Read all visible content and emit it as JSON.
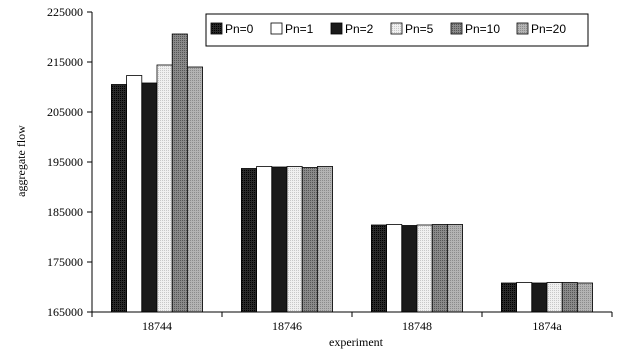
{
  "chart_data": {
    "type": "bar",
    "title": "",
    "xlabel": "experiment",
    "ylabel": "aggregate flow",
    "categories": [
      "18744",
      "18746",
      "18748",
      "1874a"
    ],
    "ylim": [
      165000,
      225000
    ],
    "yticks": [
      165000,
      175000,
      185000,
      195000,
      205000,
      215000,
      225000
    ],
    "ytick_labels": [
      "165000",
      "175000",
      "185000",
      "195000",
      "205000",
      "215000",
      "225000"
    ],
    "grid": false,
    "legend_position": "top-right",
    "series": [
      {
        "name": "Pn=0",
        "color": "#000000",
        "values": [
          210500,
          193700,
          182400,
          170800
        ]
      },
      {
        "name": "Pn=1",
        "color": "#ffffff",
        "values": [
          212300,
          194100,
          182500,
          170900
        ]
      },
      {
        "name": "Pn=2",
        "color": "#1a1a1a",
        "values": [
          210800,
          194000,
          182300,
          170800
        ]
      },
      {
        "name": "Pn=5",
        "color": "#e4e4e4",
        "values": [
          214400,
          194100,
          182400,
          170900
        ]
      },
      {
        "name": "Pn=10",
        "color": "#777777",
        "values": [
          220600,
          193900,
          182500,
          170900
        ]
      },
      {
        "name": "Pn=20",
        "color": "#a8a8a8",
        "values": [
          214000,
          194100,
          182500,
          170800
        ]
      }
    ]
  }
}
